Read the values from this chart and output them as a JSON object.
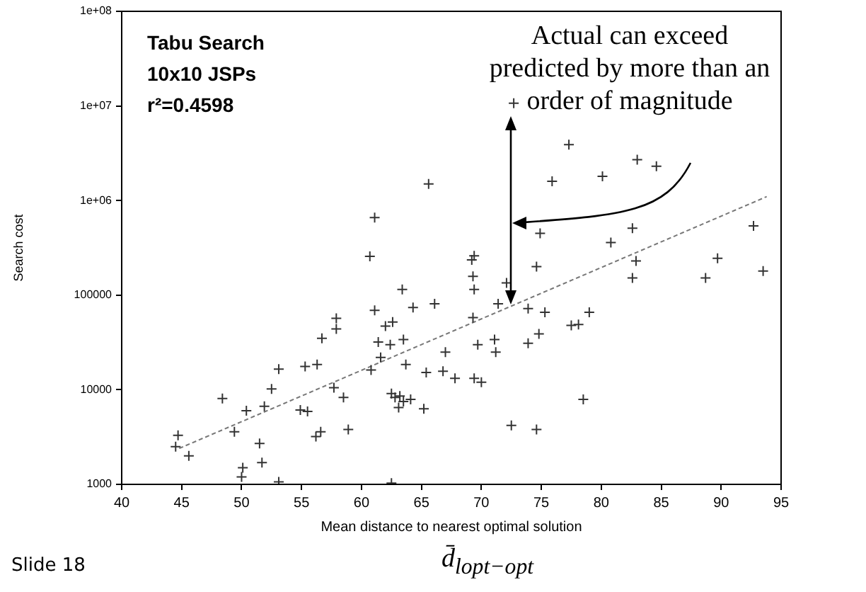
{
  "chart_data": {
    "type": "scatter",
    "xlabel": "Mean distance to nearest optimal solution",
    "ylabel": "Search cost",
    "annotations": [
      "Tabu Search",
      "10x10 JSPs",
      "r²=0.4598",
      "Actual can exceed predicted by more than an order of magnitude",
      "Slide 18",
      "d̄$_{lopt−opt}$"
    ],
    "log": "y",
    "grid": false,
    "legend": false,
    "marker": "cross",
    "xlim": [
      40,
      95
    ],
    "xticks": [
      40,
      45,
      50,
      55,
      60,
      65,
      70,
      75,
      80,
      85,
      90,
      95
    ],
    "ylim": [
      1000,
      100000000
    ],
    "yticks": [
      {
        "value": 1000,
        "label": "1000"
      },
      {
        "value": 10000,
        "label": "10000"
      },
      {
        "value": 100000,
        "label": "100000"
      },
      {
        "value": 1000000,
        "label": "1e+06"
      },
      {
        "value": 10000000,
        "label": "1e+07"
      },
      {
        "value": 100000000,
        "label": "1e+08"
      }
    ],
    "series": [
      {
        "color": "#333333",
        "x": [
          44.5,
          44.7,
          45.6,
          48.4,
          49.4,
          50.1,
          50.0,
          50.4,
          51.5,
          51.7,
          51.9,
          52.5,
          53.1,
          53.1,
          54.9,
          55.5,
          55.3,
          56.3,
          56.2,
          56.6,
          56.7,
          57.7,
          57.9,
          57.9,
          58.5,
          58.9,
          60.7,
          60.8,
          61.1,
          61.4,
          61.6,
          62.0,
          62.6,
          62.4,
          62.5,
          62.5,
          62.8,
          63.1,
          63.2,
          63.4,
          63.5,
          63.7,
          63.5,
          64.1,
          64.3,
          66.1,
          65.4,
          66.8,
          67.0,
          67.8,
          65.2,
          69.2,
          69.4,
          69.3,
          69.4,
          69.3,
          69.7,
          69.4,
          70.0,
          71.1,
          71.2,
          71.4,
          72.1,
          72.5,
          73.9,
          73.9,
          74.6,
          74.8,
          74.6,
          75.3,
          77.5,
          78.1,
          79.0,
          78.5,
          82.9,
          82.6,
          88.7,
          89.7,
          72.7,
          77.3,
          83.0,
          84.6,
          75.9,
          80.1,
          74.9,
          82.6,
          80.8,
          65.6,
          92.7,
          61.1,
          93.5
        ],
        "values": [
          2500,
          3300,
          2000,
          8100,
          3600,
          1500,
          1200,
          6000,
          2700,
          1700,
          6700,
          10200,
          16500,
          1060,
          6100,
          5900,
          17600,
          18500,
          3200,
          3600,
          35000,
          10500,
          57000,
          44000,
          8300,
          3800,
          257000,
          16200,
          69000,
          32000,
          22000,
          47000,
          52000,
          30000,
          9100,
          1030,
          8300,
          6500,
          8600,
          115000,
          34000,
          18500,
          7500,
          7900,
          74000,
          81000,
          15200,
          15700,
          25000,
          13200,
          6300,
          236000,
          260000,
          158000,
          115000,
          58000,
          30000,
          13200,
          12000,
          34000,
          25000,
          81000,
          135000,
          4200,
          72000,
          31000,
          200000,
          39000,
          3800,
          66000,
          48000,
          49000,
          66000,
          7900,
          230000,
          152000,
          152000,
          245000,
          10700000,
          3900000,
          2700000,
          2300000,
          1600000,
          1800000,
          450000,
          510000,
          360000,
          1500000,
          540000,
          660000,
          180000
        ]
      },
      {
        "type": "line",
        "color": "#777777",
        "line_style": "dashed",
        "marker": "none",
        "x": [
          44.8,
          93.8
        ],
        "values": [
          2400,
          1100000
        ]
      }
    ]
  }
}
